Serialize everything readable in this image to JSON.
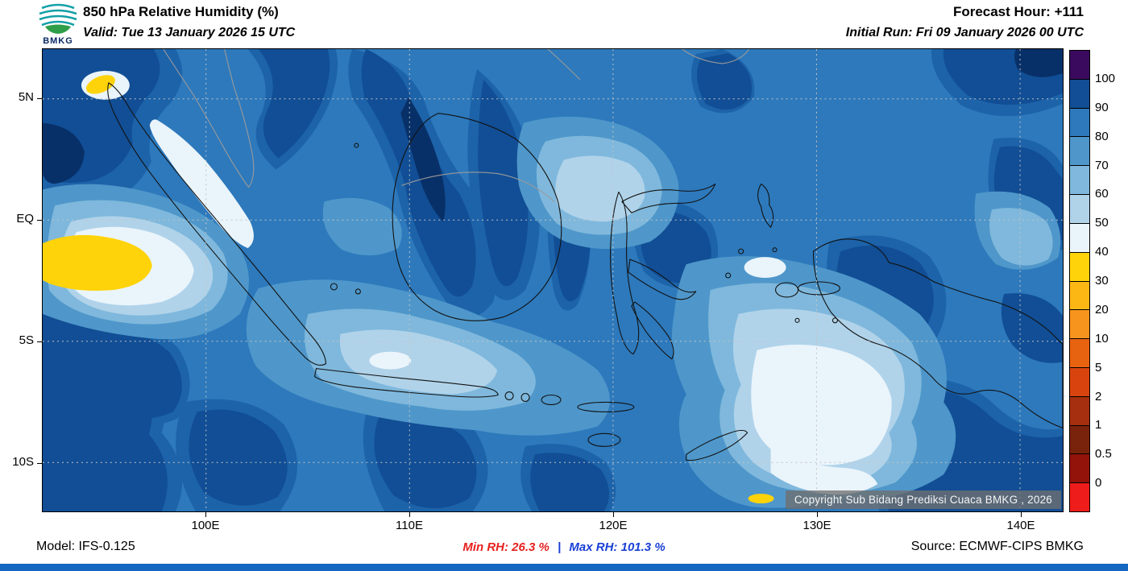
{
  "header": {
    "logo_text": "BMKG",
    "title": "850 hPa Relative Humidity (%)",
    "valid_line": "Valid: Tue 13 January 2026 15 UTC",
    "forecast_hour": "Forecast Hour: +111",
    "initial_run": "Initial Run: Fri 09 January 2026 00 UTC"
  },
  "map": {
    "lat_labels": [
      "5N",
      "EQ",
      "5S",
      "10S"
    ],
    "lon_labels": [
      "100E",
      "110E",
      "120E",
      "130E",
      "140E"
    ],
    "copyright": "Copyright Sub Bidang Prediksi Cuaca BMKG , 2026"
  },
  "colorbar": {
    "tick_labels": [
      "100",
      "90",
      "80",
      "70",
      "60",
      "50",
      "40",
      "30",
      "20",
      "10",
      "5",
      "2",
      "1",
      "0.5",
      "0"
    ],
    "segment_colors_top_to_bottom": [
      "#3a0a5e",
      "#114e95",
      "#2d79bc",
      "#4f97ca",
      "#7fb8dc",
      "#b0d3ea",
      "#eaf4fb",
      "#ffd30a",
      "#fdb714",
      "#f7941d",
      "#e8630f",
      "#d9440e",
      "#a52f0e",
      "#7a230c",
      "#93120a",
      "#ee1c1a"
    ]
  },
  "footer": {
    "model": "Model: IFS-0.125",
    "min_rh_label": "Min RH:",
    "min_rh_value": "26.3 %",
    "separator": "|",
    "max_rh_label": "Max RH:",
    "max_rh_value": "101.3 %",
    "source": "Source: ECMWF-CIPS BMKG"
  },
  "chart_data": {
    "type": "heatmap",
    "title": "850 hPa Relative Humidity (%)",
    "valid_time": "Tue 13 January 2026 15 UTC",
    "initial_run": "Fri 09 January 2026 00 UTC",
    "forecast_hour": "+111",
    "model": "IFS-0.125",
    "source": "ECMWF-CIPS BMKG",
    "x_ticks": [
      "100E",
      "110E",
      "120E",
      "130E",
      "140E"
    ],
    "y_ticks": [
      "5N",
      "EQ",
      "5S",
      "10S"
    ],
    "legend_levels_percent": [
      0,
      0.5,
      1,
      2,
      5,
      10,
      20,
      30,
      40,
      50,
      60,
      70,
      80,
      90,
      100
    ],
    "min_rh_percent": 26.3,
    "max_rh_percent": 101.3
  }
}
